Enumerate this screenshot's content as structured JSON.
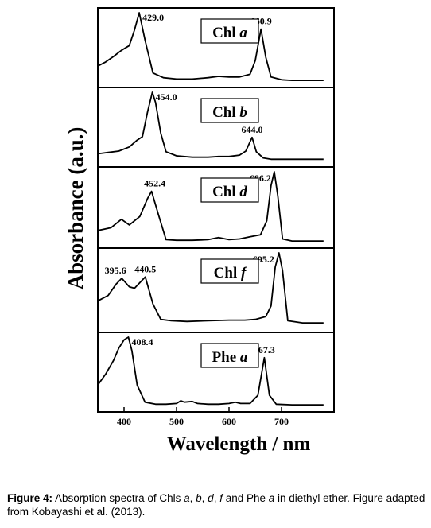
{
  "chart_data": [
    {
      "type": "line",
      "label": {
        "name": "Chl",
        "italic": "a"
      },
      "xlim": [
        350,
        800
      ],
      "series": [
        {
          "x": [
            350,
            365,
            380,
            395,
            410,
            420,
            429,
            440,
            455,
            475,
            500,
            530,
            560,
            580,
            600,
            620,
            640,
            650,
            660.9,
            670,
            680,
            700,
            720,
            780
          ],
          "y": [
            0.22,
            0.28,
            0.36,
            0.45,
            0.52,
            0.75,
            1.0,
            0.6,
            0.12,
            0.05,
            0.03,
            0.03,
            0.05,
            0.07,
            0.06,
            0.06,
            0.1,
            0.3,
            0.76,
            0.35,
            0.06,
            0.02,
            0.01,
            0.01
          ]
        }
      ],
      "peaks": [
        {
          "x": 429,
          "label": "429.0"
        },
        {
          "x": 660.9,
          "label": "660.9"
        }
      ]
    },
    {
      "type": "line",
      "label": {
        "name": "Chl",
        "italic": "b"
      },
      "xlim": [
        350,
        800
      ],
      "series": [
        {
          "x": [
            350,
            370,
            390,
            410,
            425,
            435,
            445,
            454,
            460,
            470,
            480,
            500,
            530,
            560,
            580,
            600,
            620,
            632,
            644,
            652,
            665,
            680,
            720,
            780
          ],
          "y": [
            0.1,
            0.12,
            0.14,
            0.2,
            0.3,
            0.35,
            0.72,
            1.0,
            0.85,
            0.4,
            0.13,
            0.07,
            0.05,
            0.05,
            0.06,
            0.06,
            0.08,
            0.14,
            0.34,
            0.13,
            0.04,
            0.02,
            0.02,
            0.02
          ]
        }
      ],
      "peaks": [
        {
          "x": 454,
          "label": "454.0"
        },
        {
          "x": 644,
          "label": "644.0"
        }
      ]
    },
    {
      "type": "line",
      "label": {
        "name": "Chl",
        "italic": "d"
      },
      "xlim": [
        350,
        800
      ],
      "series": [
        {
          "x": [
            350,
            375,
            395,
            410,
            430,
            445,
            452.4,
            465,
            480,
            500,
            530,
            560,
            580,
            600,
            620,
            640,
            660,
            672,
            680,
            686.2,
            693,
            702,
            720,
            780
          ],
          "y": [
            0.16,
            0.2,
            0.32,
            0.24,
            0.36,
            0.62,
            0.72,
            0.4,
            0.03,
            0.02,
            0.02,
            0.03,
            0.06,
            0.03,
            0.04,
            0.07,
            0.1,
            0.3,
            0.8,
            1.0,
            0.65,
            0.04,
            0.01,
            0.01
          ]
        }
      ],
      "peaks": [
        {
          "x": 452.4,
          "label": "452.4"
        },
        {
          "x": 686.2,
          "label": "686.2"
        }
      ]
    },
    {
      "type": "line",
      "label": {
        "name": "Chl",
        "italic": "f"
      },
      "xlim": [
        350,
        800
      ],
      "series": [
        {
          "x": [
            350,
            370,
            385,
            395.6,
            410,
            420,
            440.5,
            455,
            470,
            490,
            520,
            560,
            600,
            630,
            650,
            670,
            680,
            688,
            695.2,
            702,
            712,
            740,
            780
          ],
          "y": [
            0.32,
            0.4,
            0.56,
            0.64,
            0.52,
            0.5,
            0.66,
            0.28,
            0.06,
            0.04,
            0.03,
            0.04,
            0.05,
            0.05,
            0.06,
            0.1,
            0.25,
            0.8,
            1.0,
            0.75,
            0.04,
            0.01,
            0.01
          ]
        }
      ],
      "peaks": [
        {
          "x": 395.6,
          "label": "395.6"
        },
        {
          "x": 440.5,
          "label": "440.5"
        },
        {
          "x": 695.2,
          "label": "695.2"
        }
      ]
    },
    {
      "type": "line",
      "label": {
        "name": "Phe",
        "italic": "a"
      },
      "xlim": [
        350,
        800
      ],
      "series": [
        {
          "x": [
            350,
            365,
            380,
            390,
            400,
            408.4,
            415,
            425,
            440,
            460,
            480,
            500,
            508,
            515,
            530,
            540,
            560,
            580,
            600,
            612,
            622,
            640,
            655,
            667.3,
            677,
            690,
            720,
            780
          ],
          "y": [
            0.3,
            0.46,
            0.66,
            0.84,
            0.96,
            1.0,
            0.8,
            0.3,
            0.05,
            0.02,
            0.02,
            0.03,
            0.07,
            0.05,
            0.06,
            0.03,
            0.02,
            0.02,
            0.03,
            0.05,
            0.03,
            0.03,
            0.15,
            0.7,
            0.15,
            0.02,
            0.01,
            0.01
          ]
        }
      ],
      "peaks": [
        {
          "x": 408.4,
          "label": "408.4"
        },
        {
          "x": 667.3,
          "label": "667.3"
        }
      ]
    }
  ],
  "axes": {
    "ylabel": "Absorbance (a.u.)",
    "xlabel": "Wavelength / nm",
    "xticks": [
      400,
      500,
      600,
      700
    ]
  },
  "caption": {
    "bold": "Figure 4:",
    "parts": [
      {
        "t": " Absorption spectra of Chls ",
        "i": false
      },
      {
        "t": "a",
        "i": true
      },
      {
        "t": ", ",
        "i": false
      },
      {
        "t": "b",
        "i": true
      },
      {
        "t": ", ",
        "i": false
      },
      {
        "t": "d",
        "i": true
      },
      {
        "t": ", ",
        "i": false
      },
      {
        "t": "f",
        "i": true
      },
      {
        "t": " and Phe ",
        "i": false
      },
      {
        "t": "a",
        "i": true
      },
      {
        "t": " in diethyl ether.  Figure adapted from Kobayashi et al. (2013).",
        "i": false
      }
    ]
  }
}
